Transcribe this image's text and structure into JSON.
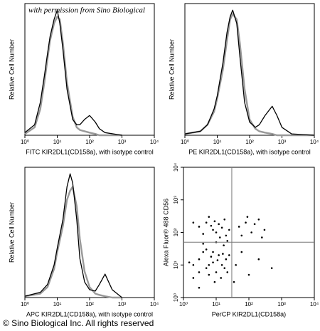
{
  "chart_data": [
    {
      "type": "line",
      "annotation": "with permission from Sino Biological",
      "xlabel": "FITC KIR2DL1(CD158a), with isotype control",
      "ylabel": "Relative Cell Number",
      "log_x": true,
      "xlim": [
        1,
        10000
      ],
      "ylim": [
        0,
        100
      ],
      "xticks": [
        {
          "value": 1,
          "label": "10⁰"
        },
        {
          "value": 10,
          "label": "10¹"
        },
        {
          "value": 100,
          "label": "10²"
        },
        {
          "value": 1000,
          "label": "10³"
        },
        {
          "value": 10000,
          "label": "10⁴"
        }
      ],
      "x": [
        1,
        2,
        3,
        4,
        5,
        6,
        8,
        10,
        12,
        15,
        20,
        30,
        40,
        50,
        70,
        100,
        150,
        200,
        300,
        1000
      ],
      "series": [
        {
          "color": "#999999",
          "values": [
            1,
            6,
            20,
            40,
            58,
            72,
            85,
            90,
            88,
            70,
            40,
            14,
            6,
            4,
            3,
            2,
            1,
            0,
            0,
            0
          ]
        },
        {
          "color": "#000000",
          "values": [
            2,
            8,
            25,
            45,
            62,
            75,
            88,
            95,
            85,
            65,
            35,
            12,
            8,
            8,
            12,
            15,
            10,
            5,
            2,
            0
          ]
        }
      ]
    },
    {
      "type": "line",
      "xlabel": "PE KIR2DL1(CD158a), with isotype control",
      "ylabel": "Relative Cell Number",
      "log_x": true,
      "xlim": [
        1,
        10000
      ],
      "ylim": [
        0,
        100
      ],
      "xticks": [
        {
          "value": 1,
          "label": "10⁰"
        },
        {
          "value": 10,
          "label": "10¹"
        },
        {
          "value": 100,
          "label": "10²"
        },
        {
          "value": 1000,
          "label": "10³"
        },
        {
          "value": 10000,
          "label": "10⁴"
        }
      ],
      "x": [
        1,
        3,
        5,
        8,
        10,
        15,
        20,
        25,
        30,
        40,
        50,
        70,
        100,
        150,
        200,
        300,
        500,
        700,
        1000,
        2000,
        10000
      ],
      "series": [
        {
          "color": "#999999",
          "values": [
            1,
            3,
            8,
            18,
            28,
            50,
            72,
            88,
            92,
            88,
            70,
            35,
            12,
            5,
            3,
            2,
            1,
            0,
            0,
            0,
            0
          ]
        },
        {
          "color": "#000000",
          "values": [
            1,
            3,
            8,
            20,
            30,
            55,
            78,
            90,
            95,
            85,
            60,
            25,
            10,
            6,
            8,
            15,
            22,
            15,
            6,
            1,
            0
          ]
        }
      ]
    },
    {
      "type": "line",
      "xlabel": "APC KIR2DL1(CD158a), with isotype control",
      "ylabel": "Relative Cell Number",
      "log_x": true,
      "xlim": [
        1,
        10000
      ],
      "ylim": [
        0,
        100
      ],
      "xticks": [
        {
          "value": 1,
          "label": "10⁰"
        },
        {
          "value": 10,
          "label": "10¹"
        },
        {
          "value": 100,
          "label": "10²"
        },
        {
          "value": 1000,
          "label": "10³"
        },
        {
          "value": 10000,
          "label": "10⁴"
        }
      ],
      "x": [
        1,
        3,
        5,
        8,
        10,
        15,
        20,
        25,
        30,
        40,
        50,
        70,
        100,
        150,
        200,
        300,
        500,
        1000
      ],
      "series": [
        {
          "color": "#999999",
          "values": [
            1,
            3,
            8,
            22,
            35,
            55,
            75,
            82,
            85,
            70,
            45,
            20,
            8,
            3,
            2,
            1,
            0,
            0
          ]
        },
        {
          "color": "#000000",
          "values": [
            1,
            4,
            10,
            25,
            38,
            60,
            85,
            95,
            88,
            60,
            30,
            12,
            6,
            5,
            10,
            18,
            6,
            0
          ]
        }
      ]
    },
    {
      "type": "scatter",
      "xlabel": "PerCP KIR2DL1(CD158a)",
      "ylabel": "Alexa Fluor® 488 CD56",
      "log_x": true,
      "log_y": true,
      "xlim": [
        1,
        10000
      ],
      "ylim": [
        1,
        10000
      ],
      "xticks": [
        {
          "value": 1,
          "label": "10⁰"
        },
        {
          "value": 10,
          "label": "10¹"
        },
        {
          "value": 100,
          "label": "10²"
        },
        {
          "value": 1000,
          "label": "10³"
        },
        {
          "value": 10000,
          "label": "10⁴"
        }
      ],
      "yticks": [
        {
          "value": 1,
          "label": "10⁰"
        },
        {
          "value": 10,
          "label": "10¹"
        },
        {
          "value": 100,
          "label": "10²"
        },
        {
          "value": 1000,
          "label": "10³"
        },
        {
          "value": 10000,
          "label": "10⁴"
        }
      ],
      "color": "#000000",
      "quadrant": {
        "x": 30,
        "y": 50
      },
      "quadrant_color": "#777777",
      "x": [
        2,
        3,
        5,
        8,
        12,
        4,
        6,
        10,
        15,
        20,
        2,
        3,
        7,
        9,
        18,
        25,
        1.5,
        5,
        11,
        14,
        22,
        6,
        8,
        3,
        16,
        3,
        5,
        8,
        12,
        18,
        4,
        6,
        10,
        15,
        20,
        2,
        7,
        25,
        9,
        13,
        4,
        10,
        17,
        22,
        50,
        80,
        120,
        200,
        60,
        150,
        300,
        90,
        250,
        40,
        100,
        60,
        200,
        500,
        35
      ],
      "values": [
        10,
        15,
        8,
        12,
        20,
        25,
        5,
        6,
        10,
        15,
        4,
        6,
        18,
        3,
        8,
        20,
        12,
        30,
        14,
        4,
        6,
        10,
        25,
        2,
        22,
        150,
        200,
        120,
        180,
        250,
        90,
        300,
        100,
        140,
        80,
        200,
        160,
        120,
        220,
        70,
        45,
        50,
        40,
        55,
        150,
        200,
        100,
        250,
        80,
        180,
        120,
        300,
        70,
        10,
        5,
        25,
        15,
        8,
        3
      ]
    }
  ],
  "footer": "© Sino Biological Inc. All rights reserved"
}
